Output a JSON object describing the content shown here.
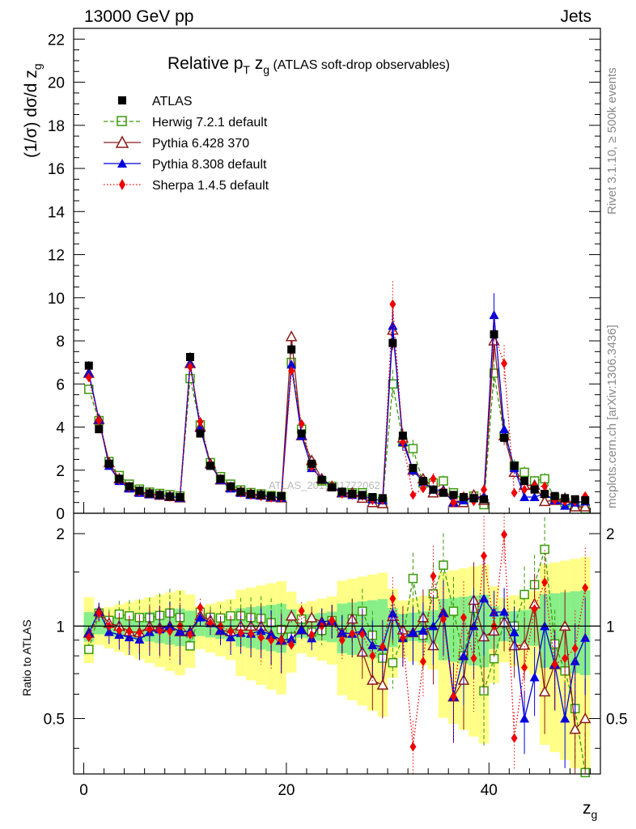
{
  "header": {
    "left": "13000 GeV pp",
    "right": "Jets"
  },
  "side_labels": {
    "rivet": "Rivet 3.1.10, ≥ 500k events",
    "site": "mcplots.cern.ch [arXiv:1306.3436]"
  },
  "watermark": "ATLAS_2019_I1772062",
  "colors": {
    "atlas": "#000000",
    "herwig": "#3a9a0a",
    "pythia6": "#8b1a1a",
    "pythia8": "#0000dd",
    "sherpa": "#ee0000",
    "band_inner": "#88ee88",
    "band_outer": "#ffff88"
  },
  "chart_data": {
    "type": "line",
    "title_main": "Relative p",
    "title_sub_T": "T",
    "title_z": " z",
    "title_sub_g": "g",
    "title_tail": " (ATLAS soft-drop observables)",
    "ylabel": "(1/σ) dσ/d z",
    "ylabel_sub": "g",
    "ratio_ylabel": "Ratio to ATLAS",
    "xlabel": "z",
    "xlabel_sub": "g",
    "xlim": [
      -1,
      51
    ],
    "ylim": [
      0,
      22.5
    ],
    "ratio_ylim": [
      0.33,
      2.33
    ],
    "x_ticks": [
      "0",
      "20",
      "40"
    ],
    "y_ticks": [
      "0",
      "2",
      "4",
      "6",
      "8",
      "10",
      "12",
      "14",
      "16",
      "18",
      "20",
      "22"
    ],
    "ratio_ticks": [
      "0.5",
      "1",
      "2"
    ],
    "legend": [
      "ATLAS",
      "Herwig 7.2.1 default",
      "Pythia 6.428 370",
      "Pythia 8.308 default",
      "Sherpa 1.4.5 default"
    ],
    "x": [
      0.5,
      1.5,
      2.5,
      3.5,
      4.5,
      5.5,
      6.5,
      7.5,
      8.5,
      9.5,
      10.5,
      11.5,
      12.5,
      13.5,
      14.5,
      15.5,
      16.5,
      17.5,
      18.5,
      19.5,
      20.5,
      21.5,
      22.5,
      23.5,
      24.5,
      25.5,
      26.5,
      27.5,
      28.5,
      29.5,
      30.5,
      31.5,
      32.5,
      33.5,
      34.5,
      35.5,
      36.5,
      37.5,
      38.5,
      39.5,
      40.5,
      41.5,
      42.5,
      43.5,
      44.5,
      45.5,
      46.5,
      47.5,
      48.5,
      49.5
    ],
    "series": [
      {
        "name": "ATLAS",
        "values": [
          6.85,
          3.9,
          2.3,
          1.6,
          1.25,
          1.05,
          0.92,
          0.85,
          0.78,
          0.75,
          7.25,
          3.7,
          2.2,
          1.6,
          1.25,
          1.0,
          0.9,
          0.85,
          0.8,
          0.8,
          7.6,
          3.7,
          2.3,
          1.55,
          1.2,
          1.0,
          0.9,
          0.85,
          0.75,
          0.7,
          7.9,
          3.6,
          2.1,
          1.5,
          1.1,
          0.95,
          0.85,
          0.75,
          0.7,
          0.65,
          8.3,
          3.5,
          2.2,
          1.5,
          1.1,
          0.9,
          0.8,
          0.7,
          0.65,
          0.6
        ]
      },
      {
        "name": "Herwig 7.2.1 default",
        "values": [
          5.75,
          4.3,
          2.4,
          1.75,
          1.35,
          1.12,
          0.98,
          0.92,
          0.86,
          0.8,
          6.25,
          4.1,
          2.35,
          1.7,
          1.35,
          1.08,
          0.96,
          0.9,
          0.82,
          0.78,
          7.0,
          3.9,
          2.2,
          1.5,
          1.25,
          0.95,
          0.95,
          0.95,
          0.7,
          0.55,
          6.0,
          3.3,
          3.0,
          1.4,
          1.4,
          1.5,
          0.95,
          0.6,
          0.8,
          0.4,
          6.5,
          3.6,
          2.2,
          1.9,
          1.5,
          1.6,
          0.7,
          0.5,
          0.35,
          0.2
        ]
      },
      {
        "name": "Pythia 6.428 370",
        "values": [
          6.5,
          4.35,
          2.35,
          1.6,
          1.2,
          1.0,
          0.92,
          0.84,
          0.78,
          0.72,
          6.95,
          4.0,
          2.3,
          1.55,
          1.2,
          1.0,
          0.9,
          0.85,
          0.75,
          0.72,
          8.2,
          3.6,
          2.45,
          1.6,
          1.25,
          0.95,
          0.95,
          0.7,
          0.5,
          0.45,
          8.5,
          3.5,
          2.0,
          1.6,
          0.95,
          1.05,
          0.5,
          0.5,
          0.85,
          0.6,
          8.0,
          3.6,
          1.9,
          1.3,
          1.3,
          0.55,
          0.6,
          0.7,
          0.3,
          0.3
        ]
      },
      {
        "name": "Pythia 8.308 default",
        "values": [
          6.5,
          4.35,
          2.2,
          1.5,
          1.15,
          0.95,
          0.88,
          0.83,
          0.78,
          0.72,
          6.95,
          3.95,
          2.25,
          1.55,
          1.15,
          0.95,
          0.85,
          0.82,
          0.75,
          0.72,
          6.9,
          3.6,
          2.1,
          1.6,
          1.25,
          0.95,
          0.85,
          0.82,
          0.65,
          0.6,
          8.7,
          3.3,
          2.0,
          1.45,
          1.1,
          1.05,
          0.5,
          0.6,
          0.7,
          0.8,
          9.2,
          3.9,
          2.1,
          0.75,
          0.75,
          0.9,
          0.6,
          0.35,
          0.5,
          0.55
        ]
      },
      {
        "name": "Sherpa 1.4.5 default",
        "values": [
          6.3,
          4.3,
          2.3,
          1.55,
          1.2,
          1.0,
          0.9,
          0.82,
          0.75,
          0.75,
          6.8,
          4.25,
          2.25,
          1.6,
          1.2,
          0.95,
          0.85,
          0.78,
          0.72,
          0.72,
          6.6,
          4.15,
          2.15,
          1.55,
          1.25,
          0.9,
          0.85,
          0.8,
          0.6,
          0.6,
          9.7,
          3.3,
          0.85,
          1.15,
          1.6,
          1.0,
          0.5,
          0.8,
          0.55,
          1.1,
          8.3,
          6.95,
          0.95,
          1.1,
          1.25,
          1.25,
          0.6,
          0.55,
          0.55,
          0.8
        ]
      }
    ]
  }
}
